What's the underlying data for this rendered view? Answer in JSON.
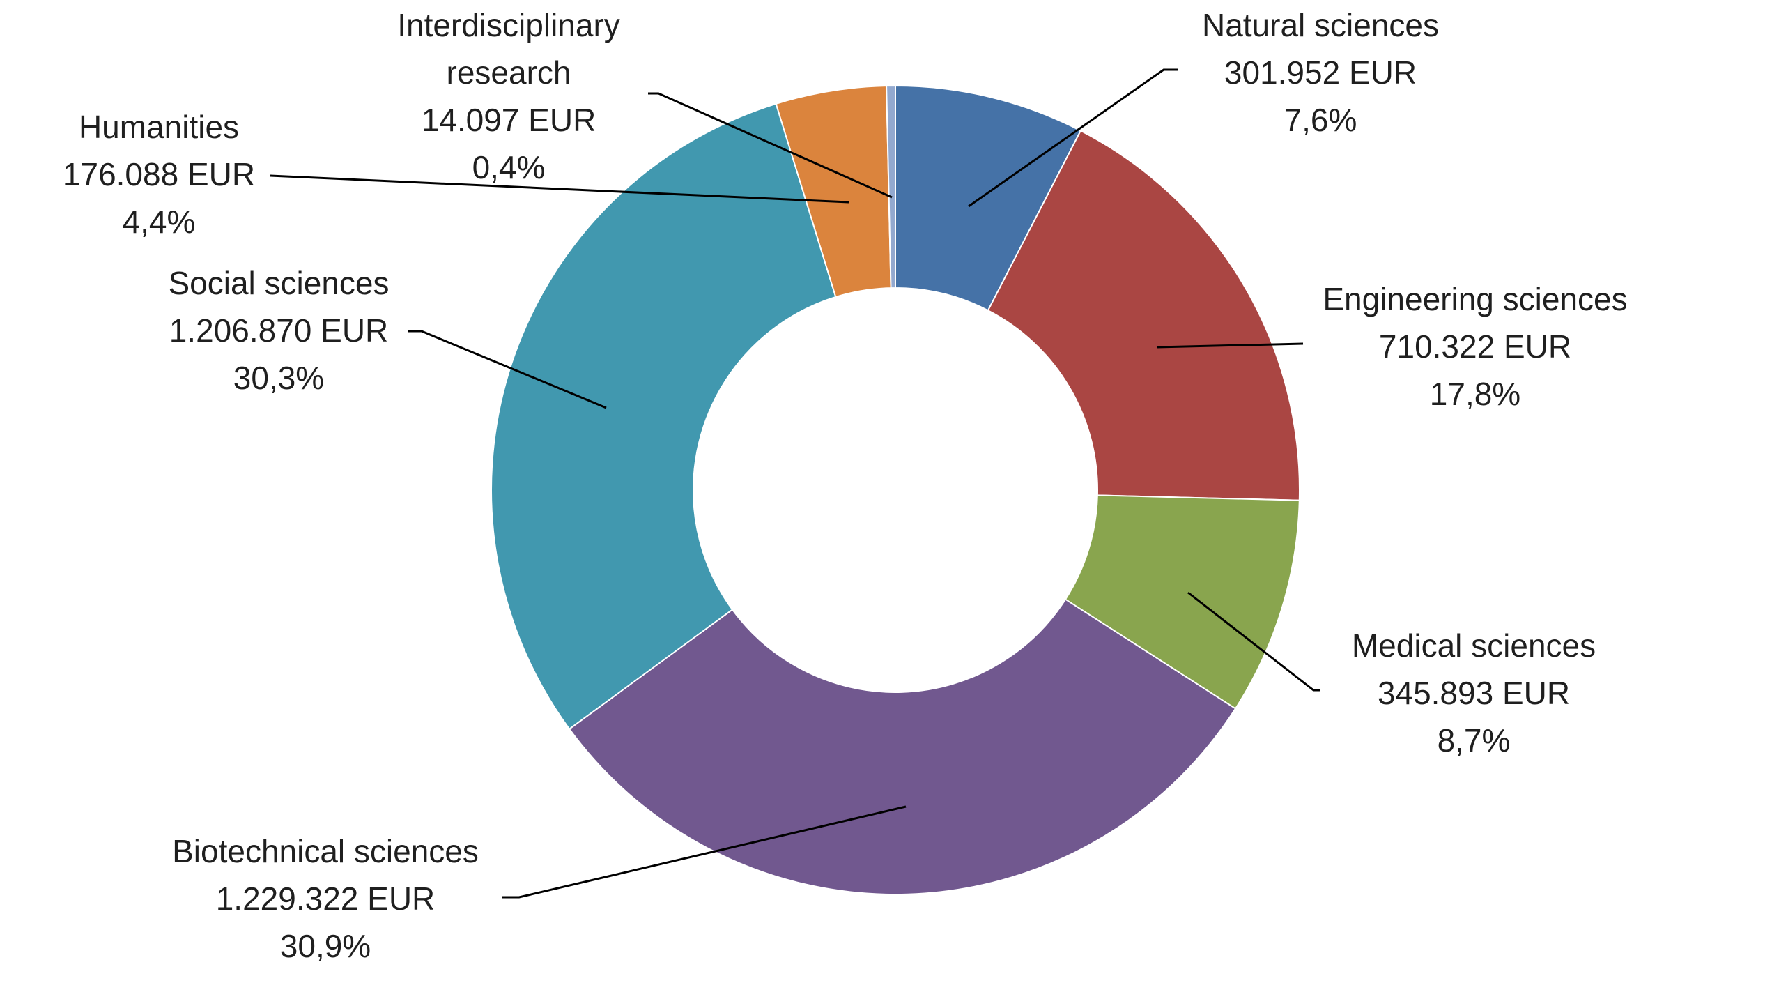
{
  "chart_data": {
    "type": "pie",
    "variant": "donut",
    "title": "",
    "start_angle_deg": 0,
    "direction": "clockwise",
    "slices": [
      {
        "name": "Natural sciences",
        "value": 301952,
        "value_label": "301.952 EUR",
        "percent": 7.6,
        "percent_label": "7,6%",
        "color": "#4572A7"
      },
      {
        "name": "Engineering sciences",
        "value": 710322,
        "value_label": "710.322 EUR",
        "percent": 17.8,
        "percent_label": "17,8%",
        "color": "#AA4643"
      },
      {
        "name": "Medical sciences",
        "value": 345893,
        "value_label": "345.893 EUR",
        "percent": 8.7,
        "percent_label": "8,7%",
        "color": "#89A54E"
      },
      {
        "name": "Biotechnical sciences",
        "value": 1229322,
        "value_label": "1.229.322 EUR",
        "percent": 30.9,
        "percent_label": "30,9%",
        "color": "#71588F"
      },
      {
        "name": "Social sciences",
        "value": 1206870,
        "value_label": "1.206.870 EUR",
        "percent": 30.3,
        "percent_label": "30,3%",
        "color": "#4198AF"
      },
      {
        "name": "Humanities",
        "value": 176088,
        "value_label": "176.088 EUR",
        "percent": 4.4,
        "percent_label": "4,4%",
        "color": "#DB843D"
      },
      {
        "name": "Interdisciplinary\nresearch",
        "value": 14097,
        "value_label": "14.097 EUR",
        "percent": 0.4,
        "percent_label": "0,4%",
        "color": "#93A9CF"
      }
    ]
  }
}
